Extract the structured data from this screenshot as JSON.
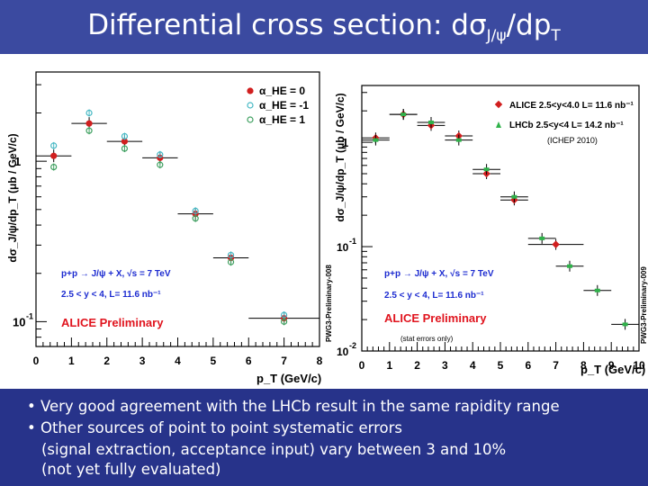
{
  "slide": {
    "title_main": "Differential cross section: dσ",
    "title_sub": "J/ψ",
    "title_tail": "/dp",
    "title_sub2": "T",
    "bullets": [
      "• Very good agreement with the LHCb result in the same rapidity range",
      "• Other sources of point to point systematic errors",
      "(signal extraction, acceptance input) vary between 3 and 10%",
      "(not yet fully evaluated)"
    ]
  },
  "colors": {
    "title_bg": "#3b4aa0",
    "bullet_bg": "#27338a",
    "alice": "#d11f1f",
    "lhcb": "#2fb24a",
    "label_red": "#e0141e",
    "label_blue": "#1c2bd0",
    "pol_cyan": "#46b8c4",
    "pol_green": "#3fa060"
  },
  "chart_data": [
    {
      "type": "scatter",
      "title": "",
      "xlabel": "p_T (GeV/c)",
      "ylabel": "dσ_J/ψ/dp_T (μb / GeV/c)",
      "yscale": "log",
      "xlim": [
        0,
        8
      ],
      "ylim": [
        0.07,
        3.6
      ],
      "x_ticks": [
        "0",
        "1",
        "2",
        "3",
        "4",
        "5",
        "6",
        "7",
        "8"
      ],
      "y_ticks": [
        "1",
        "10^-1"
      ],
      "legend": [
        {
          "symbol": "●",
          "name": "α_HE = 0",
          "color": "#d11f1f"
        },
        {
          "symbol": "○",
          "name": "α_HE = -1",
          "color": "#46b8c4"
        },
        {
          "symbol": "○",
          "name": "α_HE = 1",
          "color": "#3fa060"
        }
      ],
      "annotations": [
        "p+p → J/ψ + X, √s = 7 TeV",
        "2.5 < y < 4, L= 11.6 nb⁻¹",
        "ALICE Preliminary"
      ],
      "series": [
        {
          "name": "α_HE = 0",
          "x": [
            0.5,
            1.5,
            2.5,
            3.5,
            4.5,
            5.5,
            7.0
          ],
          "y": [
            1.08,
            1.72,
            1.33,
            1.05,
            0.47,
            0.25,
            0.105
          ],
          "xerr": [
            0.5,
            0.5,
            0.5,
            0.5,
            0.5,
            0.5,
            1.0
          ]
        },
        {
          "name": "α_HE = -1",
          "x": [
            0.5,
            1.5,
            2.5,
            3.5,
            4.5,
            5.5,
            7.0
          ],
          "y": [
            1.25,
            2.0,
            1.43,
            1.1,
            0.49,
            0.26,
            0.11
          ]
        },
        {
          "name": "α_HE = 1",
          "x": [
            0.5,
            1.5,
            2.5,
            3.5,
            4.5,
            5.5,
            7.0
          ],
          "y": [
            0.92,
            1.55,
            1.2,
            0.95,
            0.44,
            0.235,
            0.1
          ]
        }
      ]
    },
    {
      "type": "scatter",
      "title": "",
      "xlabel": "p_T (GeV/c)",
      "ylabel": "dσ_J/ψ/dp_T (μb / GeV/c)",
      "yscale": "log",
      "xlim": [
        0,
        10
      ],
      "ylim": [
        0.01,
        3.5
      ],
      "x_ticks": [
        "0",
        "1",
        "2",
        "3",
        "4",
        "5",
        "6",
        "7",
        "8",
        "9",
        "10"
      ],
      "y_ticks": [
        "1",
        "10^-1",
        "10^-2"
      ],
      "legend": [
        {
          "symbol": "◆",
          "name": "ALICE  2.5<y<4.0 L= 11.6 nb⁻¹",
          "color": "#d11f1f"
        },
        {
          "symbol": "▲",
          "name": "LHCb  2.5<y<4 L= 14.2 nb⁻¹",
          "color": "#2fb24a"
        }
      ],
      "annotations": [
        "(ICHEP 2010)",
        "p+p → J/ψ + X, √s = 7 TeV",
        "2.5 < y < 4, L= 11.6 nb⁻¹",
        "ALICE Preliminary",
        "(stat errors only)"
      ],
      "series": [
        {
          "name": "ALICE",
          "x": [
            0.5,
            1.5,
            2.5,
            3.5,
            4.5,
            5.5,
            7.0
          ],
          "y": [
            1.1,
            1.85,
            1.45,
            1.15,
            0.5,
            0.28,
            0.105
          ],
          "xerr": [
            0.5,
            0.5,
            0.5,
            0.5,
            0.5,
            0.5,
            1.0
          ]
        },
        {
          "name": "LHCb",
          "x": [
            0.5,
            1.5,
            2.5,
            3.5,
            4.5,
            5.5,
            6.5,
            7.5,
            8.5,
            9.5
          ],
          "y": [
            1.05,
            1.85,
            1.55,
            1.05,
            0.55,
            0.3,
            0.12,
            0.065,
            0.038,
            0.018
          ],
          "xerr": [
            0.5,
            0.5,
            0.5,
            0.5,
            0.5,
            0.5,
            0.5,
            0.5,
            0.5,
            0.5
          ]
        }
      ]
    }
  ],
  "vertical_labels": [
    "PWG3-Preliminary-008",
    "PWG3-Preliminary-009"
  ]
}
